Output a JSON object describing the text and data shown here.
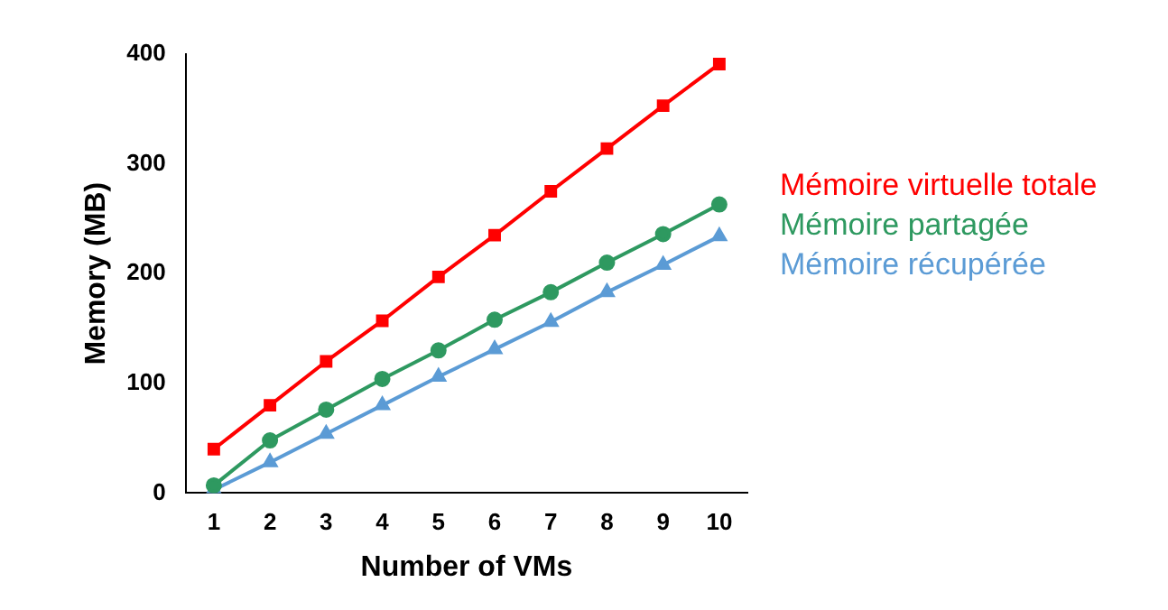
{
  "chart_data": {
    "type": "line",
    "xlabel": "Number of VMs",
    "ylabel": "Memory (MB)",
    "categories": [
      "1",
      "2",
      "3",
      "4",
      "5",
      "6",
      "7",
      "8",
      "9",
      "10"
    ],
    "series": [
      {
        "name": "Mémoire virtuelle totale",
        "color": "#ff0000",
        "marker": "square",
        "values": [
          40,
          80,
          120,
          157,
          197,
          235,
          275,
          314,
          353,
          391
        ]
      },
      {
        "name": "Mémoire partagée",
        "color": "#2e9960",
        "marker": "circle",
        "values": [
          7,
          48,
          76,
          104,
          130,
          158,
          183,
          210,
          236,
          263
        ]
      },
      {
        "name": "Mémoire récupérée",
        "color": "#5b9bd5",
        "marker": "triangle",
        "values": [
          3,
          28,
          54,
          80,
          106,
          131,
          156,
          183,
          208,
          234
        ]
      }
    ],
    "ylim": [
      0,
      400
    ],
    "yticks": [
      0,
      100,
      200,
      300,
      400
    ],
    "grid": false,
    "legend": "right",
    "line_style": "solid"
  }
}
